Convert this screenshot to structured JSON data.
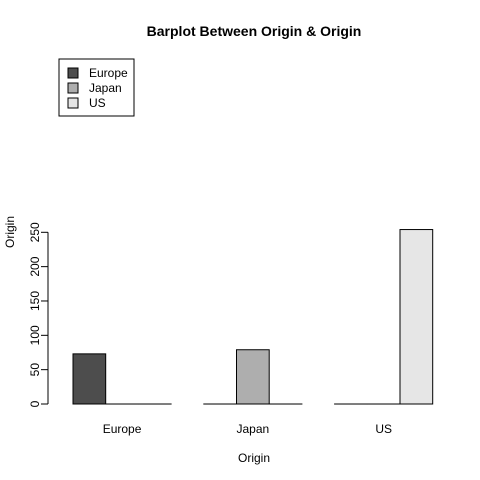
{
  "chart_data": {
    "type": "bar",
    "title": "Barplot Between Origin & Origin",
    "xlabel": "Origin",
    "ylabel": "Origin",
    "categories": [
      "Europe",
      "Japan",
      "US"
    ],
    "series": [
      {
        "name": "Europe",
        "values": [
          73,
          0,
          0
        ],
        "color": "#4d4d4d"
      },
      {
        "name": "Japan",
        "values": [
          0,
          79,
          0
        ],
        "color": "#aeaeae"
      },
      {
        "name": "US",
        "values": [
          0,
          0,
          254
        ],
        "color": "#e6e6e6"
      }
    ],
    "ylim": [
      0,
      250
    ],
    "yticks": [
      0,
      50,
      100,
      150,
      200,
      250
    ],
    "grid": false,
    "legend": {
      "position": "top-left"
    }
  }
}
